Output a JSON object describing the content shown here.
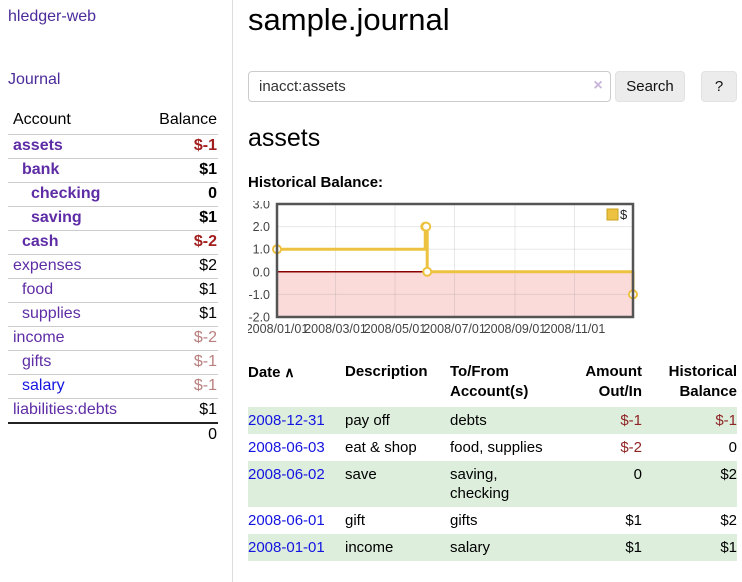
{
  "sidebar": {
    "brand": "hledger-web",
    "nav_journal": "Journal",
    "accounts_header": {
      "account": "Account",
      "balance": "Balance"
    },
    "accounts": [
      {
        "name": "assets",
        "depth": 1,
        "bold": true,
        "balance": "$-1",
        "neg": "strong"
      },
      {
        "name": "bank",
        "depth": 2,
        "bold": true,
        "balance": "$1"
      },
      {
        "name": "checking",
        "depth": 3,
        "bold": true,
        "balance": "0"
      },
      {
        "name": "saving",
        "depth": 3,
        "bold": true,
        "balance": "$1"
      },
      {
        "name": "cash",
        "depth": 2,
        "bold": true,
        "balance": "$-2",
        "neg": "strong"
      },
      {
        "name": "expenses",
        "depth": 1,
        "bold": false,
        "balance": "$2"
      },
      {
        "name": "food",
        "depth": 2,
        "bold": false,
        "balance": "$1"
      },
      {
        "name": "supplies",
        "depth": 2,
        "bold": false,
        "balance": "$1"
      },
      {
        "name": "income",
        "depth": 1,
        "bold": false,
        "balance": "$-2",
        "neg": "faded"
      },
      {
        "name": "gifts",
        "depth": 2,
        "bold": false,
        "balance": "$-1",
        "neg": "faded"
      },
      {
        "name": "salary",
        "depth": 2,
        "bold": false,
        "balance": "$-1",
        "neg": "faded",
        "link": "blue"
      },
      {
        "name": "liabilities:debts",
        "depth": 1,
        "bold": false,
        "balance": "$1"
      }
    ],
    "total": "0"
  },
  "main": {
    "title": "sample.journal",
    "account_heading": "assets",
    "chart_label": "Historical Balance:"
  },
  "search": {
    "value": "inacct:assets",
    "clear_icon": "×",
    "button_label": "Search",
    "help_label": "?"
  },
  "chart_data": {
    "type": "line",
    "step": true,
    "title": "Historical Balance:",
    "legend_position": "top-right",
    "x0": "2008-01-01",
    "xspan_days": 365,
    "ylim": [
      -2.0,
      3.0
    ],
    "y_ticks": [
      "3.0",
      "2.0",
      "1.0",
      "0.0",
      "-1.0",
      "-2.0"
    ],
    "y_tick_values": [
      3,
      2,
      1,
      0,
      -1,
      -2
    ],
    "x_ticks": [
      "2008/01/01",
      "2008/03/01",
      "2008/05/01",
      "2008/07/01",
      "2008/09/01",
      "2008/11/01"
    ],
    "series": [
      {
        "name": "$",
        "color": "#edc240",
        "points": [
          [
            "2008-01-01",
            1
          ],
          [
            "2008-06-01",
            2
          ],
          [
            "2008-06-02",
            2
          ],
          [
            "2008-06-03",
            0
          ],
          [
            "2008-12-31",
            -1
          ]
        ]
      }
    ],
    "grid_color": "#828282",
    "border_color": "#545454",
    "negative_region_color": "#fbdada",
    "zero_line_color": "#8b0000",
    "label_color": "#444444"
  },
  "register": {
    "columns": [
      {
        "label": "Date",
        "align": "left",
        "sortable": true
      },
      {
        "label": "Description",
        "align": "left"
      },
      {
        "label": "To/From\nAccount(s)",
        "align": "left"
      },
      {
        "label": "Amount\nOut/In",
        "align": "right"
      },
      {
        "label": "Historical\nBalance",
        "align": "right"
      }
    ],
    "sort_icon": "∧",
    "rows": [
      {
        "date": "2008-12-31",
        "description": "pay off",
        "accounts": "debts",
        "amount": "$-1",
        "amount_neg": true,
        "balance": "$-1",
        "balance_neg": true
      },
      {
        "date": "2008-06-03",
        "description": "eat & shop",
        "accounts": "food, supplies",
        "amount": "$-2",
        "amount_neg": true,
        "balance": "0",
        "balance_neg": false
      },
      {
        "date": "2008-06-02",
        "description": "save",
        "accounts": "saving,\nchecking",
        "amount": "0",
        "amount_neg": false,
        "balance": "$2",
        "balance_neg": false
      },
      {
        "date": "2008-06-01",
        "description": "gift",
        "accounts": "gifts",
        "amount": "$1",
        "amount_neg": false,
        "balance": "$2",
        "balance_neg": false
      },
      {
        "date": "2008-01-01",
        "description": "income",
        "accounts": "salary",
        "amount": "$1",
        "amount_neg": false,
        "balance": "$1",
        "balance_neg": false
      }
    ]
  }
}
